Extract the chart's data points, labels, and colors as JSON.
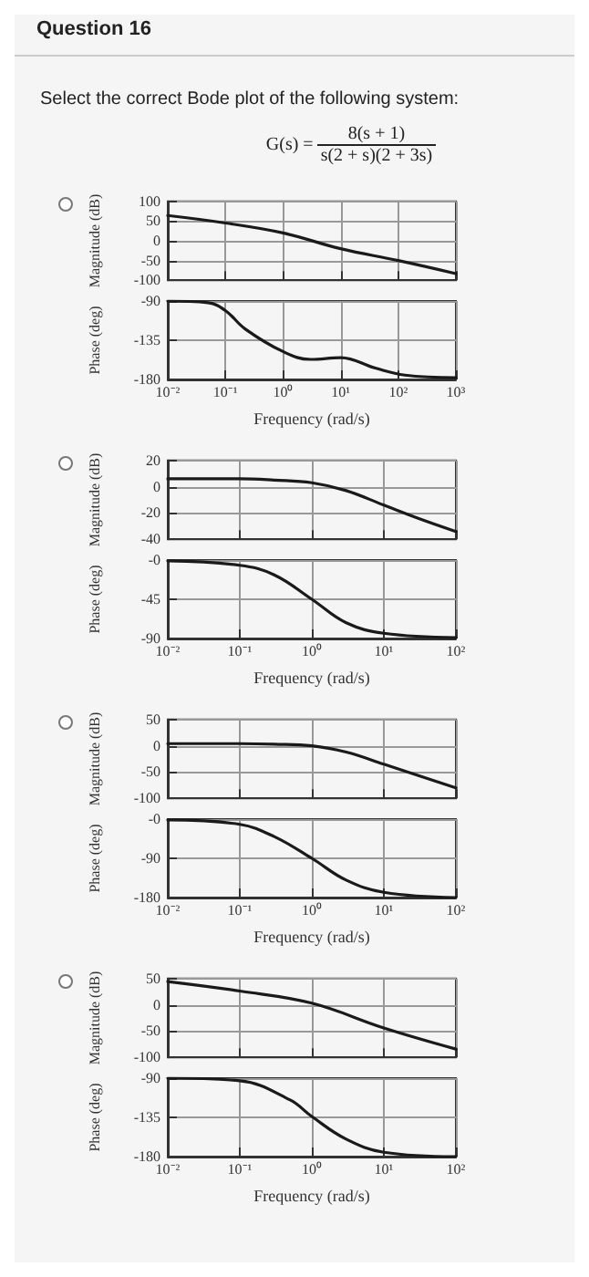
{
  "chart_data": [
    {
      "type": "other",
      "title": "Question 16",
      "subtitle": "Select the correct Bode plot of the following system:",
      "annotations": [
        "G(s) =",
        "8(s + 1)",
        "s(2 + s)(2 + 3s)"
      ]
    },
    {
      "type": "line",
      "ylabel": "Magnitude (dB)",
      "log": "x",
      "grid": true,
      "tick_labels": "y",
      "xlim": [
        0.01,
        1000
      ],
      "xticks": [
        {
          "value": 0.01,
          "label": null
        },
        {
          "value": 0.1,
          "label": null
        },
        {
          "value": 1,
          "label": null
        },
        {
          "value": 10,
          "label": null
        },
        {
          "value": 100,
          "label": null
        },
        {
          "value": 1000,
          "label": null
        }
      ],
      "ylim": [
        -100,
        100
      ],
      "yticks": [
        -100,
        -50,
        0,
        50,
        100
      ],
      "x": [
        0.01,
        0.1,
        1,
        10,
        100,
        1000
      ],
      "series": [
        {
          "color": "#1a1a1a",
          "values": [
            64,
            45,
            20,
            -20,
            -50,
            -83
          ]
        }
      ]
    },
    {
      "type": "line",
      "ylabel": "Phase (deg)",
      "xlabel": "Frequency (rad/s)",
      "log": "x",
      "grid": true,
      "xlim": [
        0.01,
        1000
      ],
      "xticks": [
        {
          "value": 0.01,
          "label": "10⁻²"
        },
        {
          "value": 0.1,
          "label": "10⁻¹"
        },
        {
          "value": 1,
          "label": "10⁰"
        },
        {
          "value": 10,
          "label": "10¹"
        },
        {
          "value": 100,
          "label": "10²"
        },
        {
          "value": 1000,
          "label": "10³"
        }
      ],
      "ylim": [
        -180,
        -90
      ],
      "yticks": [
        -180,
        -135,
        -90
      ],
      "x": [
        0.01,
        0.05,
        0.1,
        0.22,
        1,
        3,
        10,
        40,
        130,
        1000
      ],
      "series": [
        {
          "color": "#1a1a1a",
          "values": [
            -90,
            -92,
            -101,
            -122,
            -148,
            -157,
            -155,
            -167,
            -175,
            -178
          ]
        }
      ]
    },
    {
      "type": "line",
      "ylabel": "Magnitude (dB)",
      "log": "x",
      "grid": true,
      "tick_labels": "y",
      "xlim": [
        0.01,
        100
      ],
      "xticks": [
        {
          "value": 0.01,
          "label": null
        },
        {
          "value": 0.1,
          "label": null
        },
        {
          "value": 1,
          "label": null
        },
        {
          "value": 10,
          "label": null
        },
        {
          "value": 100,
          "label": null
        }
      ],
      "ylim": [
        -40,
        20
      ],
      "yticks": [
        -40,
        -20,
        0,
        20
      ],
      "x": [
        0.01,
        0.1,
        0.3,
        1,
        3,
        10,
        30,
        100
      ],
      "series": [
        {
          "color": "#1a1a1a",
          "values": [
            6,
            6,
            5,
            3,
            -3,
            -14,
            -24,
            -34
          ]
        }
      ]
    },
    {
      "type": "line",
      "ylabel": "Phase (deg)",
      "xlabel": "Frequency (rad/s)",
      "log": "x",
      "grid": true,
      "xlim": [
        0.01,
        100
      ],
      "xticks": [
        {
          "value": 0.01,
          "label": "10⁻²"
        },
        {
          "value": 0.1,
          "label": "10⁻¹"
        },
        {
          "value": 1,
          "label": "10⁰"
        },
        {
          "value": 10,
          "label": "10¹"
        },
        {
          "value": 100,
          "label": "10²"
        }
      ],
      "ylim": [
        -90,
        0
      ],
      "yticks": [
        -90,
        -45,
        {
          "value": 0,
          "label": "-0"
        }
      ],
      "x": [
        0.01,
        0.1,
        0.3,
        1,
        3,
        10,
        100
      ],
      "series": [
        {
          "color": "#1a1a1a",
          "values": [
            -1,
            -6,
            -17,
            -45,
            -72,
            -84,
            -89
          ]
        }
      ]
    },
    {
      "type": "line",
      "ylabel": "Magnitude (dB)",
      "log": "x",
      "grid": true,
      "tick_labels": "y",
      "xlim": [
        0.01,
        100
      ],
      "xticks": [
        {
          "value": 0.01,
          "label": null
        },
        {
          "value": 0.1,
          "label": null
        },
        {
          "value": 1,
          "label": null
        },
        {
          "value": 10,
          "label": null
        },
        {
          "value": 100,
          "label": null
        }
      ],
      "ylim": [
        -100,
        50
      ],
      "yticks": [
        -100,
        -50,
        0,
        50
      ],
      "x": [
        0.01,
        0.1,
        0.3,
        1,
        3,
        10,
        100
      ],
      "series": [
        {
          "color": "#1a1a1a",
          "values": [
            4,
            4,
            3,
            0,
            -12,
            -35,
            -80
          ]
        }
      ]
    },
    {
      "type": "line",
      "ylabel": "Phase (deg)",
      "xlabel": "Frequency (rad/s)",
      "log": "x",
      "grid": true,
      "xlim": [
        0.01,
        100
      ],
      "xticks": [
        {
          "value": 0.01,
          "label": "10⁻²"
        },
        {
          "value": 0.1,
          "label": "10⁻¹"
        },
        {
          "value": 1,
          "label": "10⁰"
        },
        {
          "value": 10,
          "label": "10¹"
        },
        {
          "value": 100,
          "label": "10²"
        }
      ],
      "ylim": [
        -180,
        0
      ],
      "yticks": [
        -180,
        -90,
        {
          "value": 0,
          "label": "-0"
        }
      ],
      "x": [
        0.01,
        0.1,
        0.3,
        1,
        3,
        10,
        100
      ],
      "series": [
        {
          "color": "#1a1a1a",
          "values": [
            -2,
            -12,
            -40,
            -90,
            -140,
            -168,
            -180
          ]
        }
      ]
    },
    {
      "type": "line",
      "ylabel": "Magnitude (dB)",
      "log": "x",
      "grid": true,
      "tick_labels": "y",
      "xlim": [
        0.01,
        100
      ],
      "xticks": [
        {
          "value": 0.01,
          "label": null
        },
        {
          "value": 0.1,
          "label": null
        },
        {
          "value": 1,
          "label": null
        },
        {
          "value": 10,
          "label": null
        },
        {
          "value": 100,
          "label": null
        }
      ],
      "ylim": [
        -100,
        50
      ],
      "yticks": [
        -100,
        -50,
        0,
        50
      ],
      "x": [
        0.01,
        0.1,
        1,
        10,
        100
      ],
      "series": [
        {
          "color": "#1a1a1a",
          "values": [
            44,
            26,
            3,
            -44,
            -84
          ]
        }
      ]
    },
    {
      "type": "line",
      "ylabel": "Phase (deg)",
      "xlabel": "Frequency (rad/s)",
      "log": "x",
      "grid": true,
      "xlim": [
        0.01,
        100
      ],
      "xticks": [
        {
          "value": 0.01,
          "label": "10⁻²"
        },
        {
          "value": 0.1,
          "label": "10⁻¹"
        },
        {
          "value": 1,
          "label": "10⁰"
        },
        {
          "value": 10,
          "label": "10¹"
        },
        {
          "value": 100,
          "label": "10²"
        }
      ],
      "ylim": [
        -180,
        -90
      ],
      "yticks": [
        -180,
        -135,
        -90
      ],
      "x": [
        0.01,
        0.1,
        0.5,
        1,
        3,
        10,
        100
      ],
      "series": [
        {
          "color": "#1a1a1a",
          "values": [
            -90,
            -93,
            -115,
            -134,
            -160,
            -175,
            -180
          ]
        }
      ]
    }
  ]
}
